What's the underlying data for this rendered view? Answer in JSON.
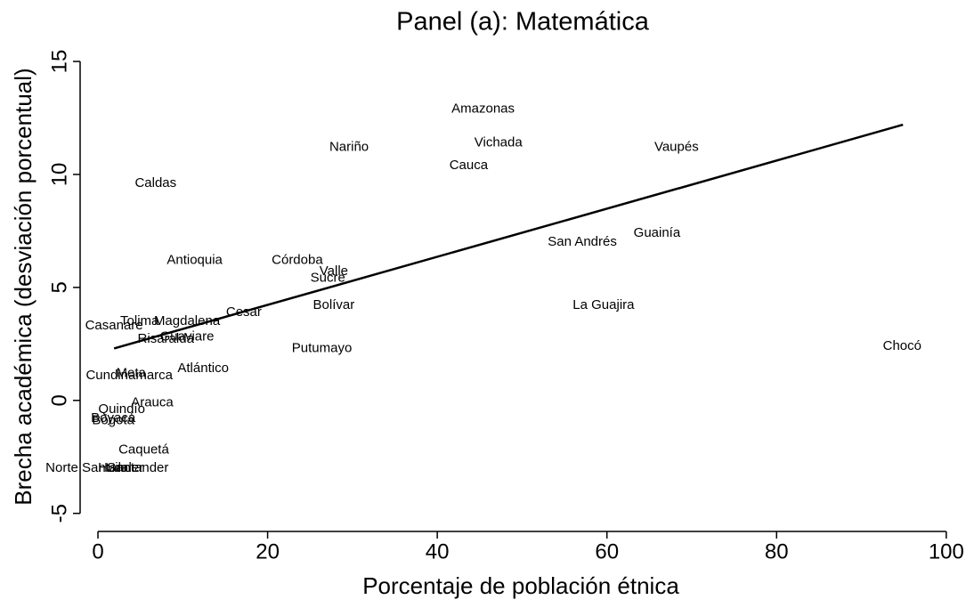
{
  "chart_data": {
    "type": "scatter",
    "title": "Panel (a): Matemática",
    "x_label": "Porcentaje de población étnica",
    "y_label": "Brecha académica (desviación porcentual)",
    "xlim": [
      -2.1,
      101.8
    ],
    "ylim": [
      -5.8,
      15.75
    ],
    "xticks": [
      0,
      20,
      40,
      60,
      80,
      100
    ],
    "yticks": [
      -5,
      0,
      5,
      10,
      15
    ],
    "grid": false,
    "color": "#000000",
    "points": {
      "labels": [
        "Amazonas",
        "Vichada",
        "Cauca",
        "Nariño",
        "Vaupés",
        "Caldas",
        "San Andrés",
        "Guainía",
        "Antioquia",
        "Córdoba",
        "Valle",
        "Sucre",
        "Cesar",
        "Bolívar",
        "La Guajira",
        "Chocó",
        "Putumayo",
        "Casanare",
        "Tolima",
        "Magdalena",
        "Guaviare",
        "Risaralda",
        "Atlántico",
        "Cundinamarca",
        "Meta",
        "Arauca",
        "Quindío",
        "Boyacá",
        "Bogotá",
        "Caquetá",
        "Norte Santander",
        "Huila",
        "Santander"
      ],
      "x": [
        45.4,
        47.2,
        43.7,
        29.6,
        68.2,
        6.8,
        57.1,
        65.9,
        11.4,
        23.5,
        27.8,
        27.1,
        17.2,
        27.8,
        59.6,
        94.8,
        26.4,
        1.9,
        4.9,
        10.5,
        10.5,
        8.0,
        12.4,
        3.7,
        3.9,
        6.4,
        2.8,
        1.8,
        1.8,
        5.4,
        -0.4,
        1.8,
        4.7
      ],
      "y": [
        12.9,
        11.4,
        10.4,
        11.2,
        11.2,
        9.6,
        7.0,
        7.4,
        6.2,
        6.2,
        5.7,
        5.4,
        3.9,
        4.2,
        4.2,
        2.4,
        2.3,
        3.3,
        3.5,
        3.5,
        2.8,
        2.7,
        1.4,
        1.1,
        1.2,
        -0.1,
        -0.4,
        -0.8,
        -0.9,
        -2.2,
        -3.0,
        -3.0,
        -3.0
      ]
    },
    "fit": {
      "x": [
        1.9,
        94.9
      ],
      "y": [
        2.3,
        12.2
      ]
    }
  }
}
